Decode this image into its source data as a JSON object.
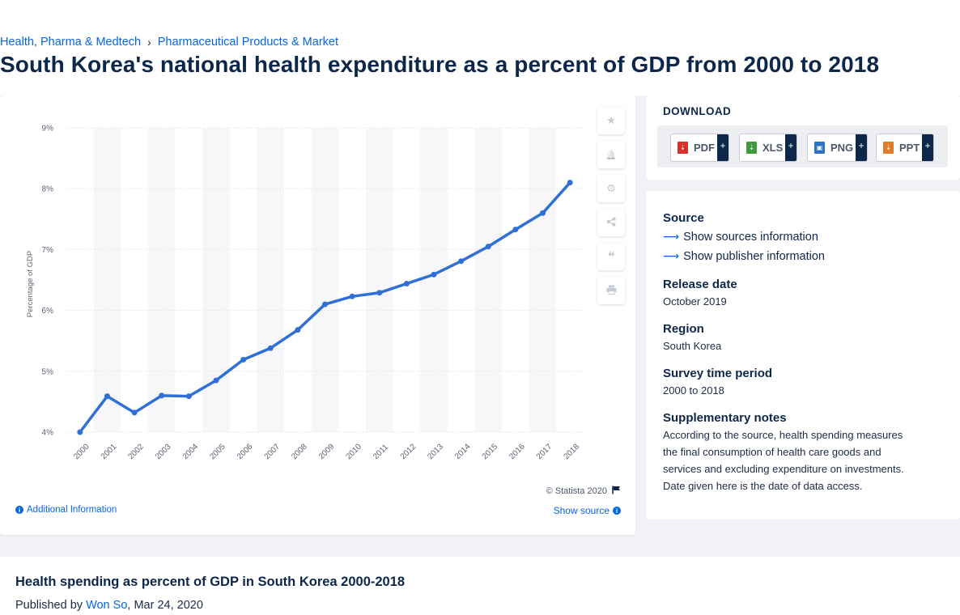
{
  "breadcrumb": {
    "item1": "Health, Pharma & Medtech",
    "sep": "›",
    "item2": "Pharmaceutical Products & Market"
  },
  "page_title": "South Korea's national health expenditure as a percent of GDP from 2000 to 2018",
  "chart_tools": [
    {
      "icon": "star-icon",
      "glyph": "★"
    },
    {
      "icon": "bell-icon",
      "glyph": "🔔"
    },
    {
      "icon": "gear-icon",
      "glyph": "⚙"
    },
    {
      "icon": "share-icon",
      "glyph": "⋘"
    },
    {
      "icon": "quote-icon",
      "glyph": "❝"
    },
    {
      "icon": "print-icon",
      "glyph": "⎙"
    }
  ],
  "copyright": "© Statista 2020",
  "additional_information": "Additional Information",
  "show_source": "Show source",
  "download": {
    "title": "DOWNLOAD",
    "formats": [
      {
        "label": "PDF",
        "plus": "+",
        "color": "#d9302c"
      },
      {
        "label": "XLS",
        "plus": "+",
        "color": "#3e9a3a"
      },
      {
        "label": "PNG",
        "plus": "+",
        "color": "#2d72c8"
      },
      {
        "label": "PPT",
        "plus": "+",
        "color": "#e07b28"
      }
    ]
  },
  "meta": {
    "source_heading": "Source",
    "show_sources": "Show sources information",
    "show_publisher": "Show publisher information",
    "release_heading": "Release date",
    "release_value": "October 2019",
    "region_heading": "Region",
    "region_value": "South Korea",
    "survey_heading": "Survey time period",
    "survey_value": "2000 to 2018",
    "notes_heading": "Supplementary notes",
    "notes_line1": "According to the source, health spending measures",
    "notes_line2": "the final consumption of health care goods and",
    "notes_line3": "services and excluding expenditure on investments.",
    "notes_line4": "Date given here is the date of data access."
  },
  "lower": {
    "title": "Health spending as percent of GDP in South Korea 2000-2018",
    "published_prefix": "Published by ",
    "author": "Won So",
    "date": ", Mar 24, 2020"
  },
  "chart_data": {
    "type": "line",
    "title": "",
    "xlabel": "",
    "ylabel": "Percentage of GDP",
    "categories": [
      "2000",
      "2001",
      "2002",
      "2003",
      "2004",
      "2005",
      "2006",
      "2007",
      "2008",
      "2009",
      "2010",
      "2011",
      "2012",
      "2013",
      "2014",
      "2015",
      "2016",
      "2017",
      "2018"
    ],
    "values": [
      4.0,
      4.59,
      4.32,
      4.6,
      4.59,
      4.85,
      5.19,
      5.38,
      5.68,
      6.1,
      6.23,
      6.29,
      6.44,
      6.59,
      6.81,
      7.05,
      7.33,
      7.6,
      8.1
    ],
    "ylim": [
      4,
      9
    ],
    "yticks": [
      4,
      5,
      6,
      7,
      8,
      9
    ],
    "ytick_labels": [
      "4%",
      "5%",
      "6%",
      "7%",
      "8%",
      "9%"
    ],
    "grid": true,
    "alternating_column_bands": true,
    "line_color": "#2f6fd6"
  }
}
